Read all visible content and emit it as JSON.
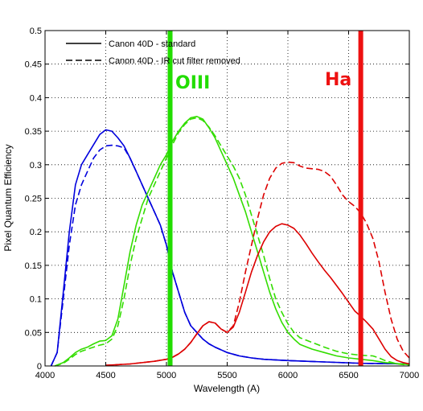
{
  "chart_data": {
    "type": "line",
    "xlabel": "Wavelength (A)",
    "ylabel": "Pixel Quantum Efficiency",
    "xlim": [
      4000,
      7000
    ],
    "ylim": [
      0,
      0.5
    ],
    "grid": true,
    "legend_position": "top-left",
    "xticks": [
      4000,
      4500,
      5000,
      5500,
      6000,
      6500,
      7000
    ],
    "xtick_labels": [
      "4000",
      "4500",
      "5000",
      "5500",
      "6000",
      "6500",
      "7000"
    ],
    "yticks": [
      0,
      0.05,
      0.1,
      0.15,
      0.2,
      0.25,
      0.3,
      0.35,
      0.4,
      0.45,
      0.5
    ],
    "ytick_labels": [
      "0",
      "0.05",
      "0.1",
      "0.15",
      "0.2",
      "0.25",
      "0.3",
      "0.35",
      "0.4",
      "0.45",
      "0.5"
    ],
    "legend": [
      {
        "label": "Canon 40D - standard",
        "style": "solid"
      },
      {
        "label": "Canon 40D - IR cut filter removed",
        "style": "dashed"
      }
    ],
    "series": [
      {
        "key": "blue-standard",
        "color": "#0000dd",
        "style": "solid",
        "points": [
          [
            4050,
            0
          ],
          [
            4100,
            0.02
          ],
          [
            4150,
            0.11
          ],
          [
            4200,
            0.2
          ],
          [
            4250,
            0.27
          ],
          [
            4300,
            0.3
          ],
          [
            4350,
            0.315
          ],
          [
            4400,
            0.33
          ],
          [
            4450,
            0.345
          ],
          [
            4500,
            0.352
          ],
          [
            4550,
            0.35
          ],
          [
            4600,
            0.34
          ],
          [
            4650,
            0.328
          ],
          [
            4700,
            0.31
          ],
          [
            4750,
            0.29
          ],
          [
            4800,
            0.27
          ],
          [
            4850,
            0.25
          ],
          [
            4900,
            0.23
          ],
          [
            4950,
            0.21
          ],
          [
            5000,
            0.18
          ],
          [
            5050,
            0.14
          ],
          [
            5100,
            0.11
          ],
          [
            5150,
            0.08
          ],
          [
            5200,
            0.06
          ],
          [
            5250,
            0.05
          ],
          [
            5300,
            0.04
          ],
          [
            5350,
            0.033
          ],
          [
            5400,
            0.028
          ],
          [
            5500,
            0.02
          ],
          [
            5600,
            0.015
          ],
          [
            5700,
            0.012
          ],
          [
            5800,
            0.01
          ],
          [
            6000,
            0.008
          ],
          [
            6300,
            0.006
          ],
          [
            6600,
            0.004
          ],
          [
            7000,
            0.003
          ]
        ]
      },
      {
        "key": "blue-ir-removed",
        "color": "#0000dd",
        "style": "dashed",
        "points": [
          [
            4050,
            0
          ],
          [
            4100,
            0.02
          ],
          [
            4150,
            0.1
          ],
          [
            4200,
            0.18
          ],
          [
            4250,
            0.24
          ],
          [
            4300,
            0.27
          ],
          [
            4350,
            0.29
          ],
          [
            4400,
            0.31
          ],
          [
            4450,
            0.322
          ],
          [
            4500,
            0.328
          ],
          [
            4550,
            0.329
          ],
          [
            4600,
            0.328
          ],
          [
            4650,
            0.325
          ],
          [
            4700,
            0.31
          ],
          [
            4750,
            0.29
          ],
          [
            4800,
            0.27
          ],
          [
            4850,
            0.25
          ],
          [
            4900,
            0.23
          ],
          [
            4950,
            0.21
          ],
          [
            5000,
            0.18
          ],
          [
            5050,
            0.14
          ],
          [
            5100,
            0.11
          ],
          [
            5150,
            0.08
          ],
          [
            5200,
            0.06
          ],
          [
            5250,
            0.05
          ],
          [
            5300,
            0.04
          ],
          [
            5350,
            0.033
          ],
          [
            5400,
            0.028
          ],
          [
            5500,
            0.02
          ],
          [
            5600,
            0.015
          ],
          [
            5700,
            0.012
          ],
          [
            5800,
            0.01
          ],
          [
            6000,
            0.008
          ],
          [
            6300,
            0.006
          ],
          [
            6600,
            0.004
          ],
          [
            7000,
            0.003
          ]
        ]
      },
      {
        "key": "green-standard",
        "color": "#33dd00",
        "style": "solid",
        "points": [
          [
            4080,
            0
          ],
          [
            4150,
            0.005
          ],
          [
            4200,
            0.012
          ],
          [
            4250,
            0.02
          ],
          [
            4300,
            0.025
          ],
          [
            4350,
            0.028
          ],
          [
            4400,
            0.033
          ],
          [
            4450,
            0.037
          ],
          [
            4500,
            0.038
          ],
          [
            4550,
            0.045
          ],
          [
            4600,
            0.07
          ],
          [
            4650,
            0.12
          ],
          [
            4700,
            0.17
          ],
          [
            4750,
            0.21
          ],
          [
            4800,
            0.24
          ],
          [
            4850,
            0.26
          ],
          [
            4900,
            0.28
          ],
          [
            4950,
            0.3
          ],
          [
            5000,
            0.315
          ],
          [
            5050,
            0.335
          ],
          [
            5100,
            0.35
          ],
          [
            5150,
            0.362
          ],
          [
            5200,
            0.37
          ],
          [
            5250,
            0.372
          ],
          [
            5300,
            0.368
          ],
          [
            5350,
            0.355
          ],
          [
            5400,
            0.34
          ],
          [
            5450,
            0.32
          ],
          [
            5500,
            0.3
          ],
          [
            5550,
            0.28
          ],
          [
            5600,
            0.255
          ],
          [
            5650,
            0.23
          ],
          [
            5700,
            0.2
          ],
          [
            5750,
            0.17
          ],
          [
            5800,
            0.14
          ],
          [
            5850,
            0.11
          ],
          [
            5900,
            0.085
          ],
          [
            5950,
            0.065
          ],
          [
            6000,
            0.05
          ],
          [
            6050,
            0.04
          ],
          [
            6100,
            0.032
          ],
          [
            6200,
            0.025
          ],
          [
            6300,
            0.02
          ],
          [
            6400,
            0.015
          ],
          [
            6500,
            0.012
          ],
          [
            6600,
            0.01
          ],
          [
            6700,
            0.008
          ],
          [
            6800,
            0.005
          ],
          [
            7000,
            0.002
          ]
        ]
      },
      {
        "key": "green-ir-removed",
        "color": "#33dd00",
        "style": "dashed",
        "points": [
          [
            4080,
            0
          ],
          [
            4150,
            0.004
          ],
          [
            4200,
            0.01
          ],
          [
            4250,
            0.017
          ],
          [
            4300,
            0.022
          ],
          [
            4350,
            0.025
          ],
          [
            4400,
            0.028
          ],
          [
            4450,
            0.031
          ],
          [
            4500,
            0.033
          ],
          [
            4550,
            0.04
          ],
          [
            4600,
            0.06
          ],
          [
            4650,
            0.1
          ],
          [
            4700,
            0.15
          ],
          [
            4750,
            0.19
          ],
          [
            4800,
            0.22
          ],
          [
            4850,
            0.25
          ],
          [
            4900,
            0.27
          ],
          [
            4950,
            0.29
          ],
          [
            5000,
            0.31
          ],
          [
            5050,
            0.33
          ],
          [
            5100,
            0.348
          ],
          [
            5150,
            0.36
          ],
          [
            5200,
            0.368
          ],
          [
            5250,
            0.37
          ],
          [
            5300,
            0.366
          ],
          [
            5350,
            0.356
          ],
          [
            5400,
            0.343
          ],
          [
            5450,
            0.328
          ],
          [
            5500,
            0.313
          ],
          [
            5550,
            0.298
          ],
          [
            5600,
            0.28
          ],
          [
            5650,
            0.255
          ],
          [
            5700,
            0.225
          ],
          [
            5750,
            0.195
          ],
          [
            5800,
            0.165
          ],
          [
            5850,
            0.13
          ],
          [
            5900,
            0.1
          ],
          [
            5950,
            0.08
          ],
          [
            6000,
            0.063
          ],
          [
            6050,
            0.05
          ],
          [
            6100,
            0.042
          ],
          [
            6200,
            0.035
          ],
          [
            6300,
            0.028
          ],
          [
            6400,
            0.022
          ],
          [
            6500,
            0.018
          ],
          [
            6600,
            0.016
          ],
          [
            6700,
            0.015
          ],
          [
            6750,
            0.012
          ],
          [
            6800,
            0.008
          ],
          [
            6900,
            0.003
          ],
          [
            7000,
            0.001
          ]
        ]
      },
      {
        "key": "red-standard",
        "color": "#dd0000",
        "style": "solid",
        "points": [
          [
            4500,
            0.001
          ],
          [
            4700,
            0.003
          ],
          [
            4900,
            0.007
          ],
          [
            5000,
            0.01
          ],
          [
            5050,
            0.013
          ],
          [
            5100,
            0.018
          ],
          [
            5150,
            0.025
          ],
          [
            5200,
            0.035
          ],
          [
            5250,
            0.048
          ],
          [
            5300,
            0.06
          ],
          [
            5350,
            0.066
          ],
          [
            5400,
            0.064
          ],
          [
            5450,
            0.055
          ],
          [
            5500,
            0.05
          ],
          [
            5550,
            0.058
          ],
          [
            5600,
            0.08
          ],
          [
            5650,
            0.11
          ],
          [
            5700,
            0.14
          ],
          [
            5750,
            0.165
          ],
          [
            5800,
            0.185
          ],
          [
            5850,
            0.2
          ],
          [
            5900,
            0.208
          ],
          [
            5950,
            0.212
          ],
          [
            6000,
            0.21
          ],
          [
            6050,
            0.205
          ],
          [
            6100,
            0.195
          ],
          [
            6150,
            0.182
          ],
          [
            6200,
            0.168
          ],
          [
            6250,
            0.155
          ],
          [
            6300,
            0.143
          ],
          [
            6350,
            0.132
          ],
          [
            6400,
            0.12
          ],
          [
            6450,
            0.108
          ],
          [
            6500,
            0.095
          ],
          [
            6550,
            0.082
          ],
          [
            6600,
            0.074
          ],
          [
            6650,
            0.065
          ],
          [
            6700,
            0.055
          ],
          [
            6750,
            0.04
          ],
          [
            6800,
            0.025
          ],
          [
            6850,
            0.014
          ],
          [
            6900,
            0.008
          ],
          [
            6950,
            0.005
          ],
          [
            7000,
            0.003
          ]
        ]
      },
      {
        "key": "red-ir-removed",
        "color": "#dd0000",
        "style": "dashed",
        "points": [
          [
            4500,
            0.001
          ],
          [
            4700,
            0.003
          ],
          [
            4900,
            0.007
          ],
          [
            5000,
            0.01
          ],
          [
            5050,
            0.013
          ],
          [
            5100,
            0.018
          ],
          [
            5150,
            0.025
          ],
          [
            5200,
            0.035
          ],
          [
            5250,
            0.048
          ],
          [
            5300,
            0.06
          ],
          [
            5350,
            0.066
          ],
          [
            5400,
            0.064
          ],
          [
            5450,
            0.055
          ],
          [
            5500,
            0.05
          ],
          [
            5550,
            0.06
          ],
          [
            5600,
            0.095
          ],
          [
            5650,
            0.14
          ],
          [
            5700,
            0.18
          ],
          [
            5750,
            0.22
          ],
          [
            5800,
            0.255
          ],
          [
            5850,
            0.28
          ],
          [
            5900,
            0.295
          ],
          [
            5950,
            0.302
          ],
          [
            6000,
            0.304
          ],
          [
            6050,
            0.303
          ],
          [
            6100,
            0.298
          ],
          [
            6150,
            0.295
          ],
          [
            6200,
            0.294
          ],
          [
            6250,
            0.293
          ],
          [
            6300,
            0.29
          ],
          [
            6350,
            0.283
          ],
          [
            6400,
            0.27
          ],
          [
            6450,
            0.255
          ],
          [
            6500,
            0.245
          ],
          [
            6550,
            0.238
          ],
          [
            6600,
            0.228
          ],
          [
            6650,
            0.212
          ],
          [
            6700,
            0.19
          ],
          [
            6750,
            0.155
          ],
          [
            6800,
            0.11
          ],
          [
            6850,
            0.07
          ],
          [
            6900,
            0.04
          ],
          [
            6950,
            0.022
          ],
          [
            7000,
            0.012
          ]
        ]
      }
    ],
    "vlines": [
      {
        "x": 5030,
        "color": "#22dd00",
        "label": "OIII"
      },
      {
        "x": 6600,
        "color": "#ee1111",
        "label": "Ha"
      }
    ]
  }
}
